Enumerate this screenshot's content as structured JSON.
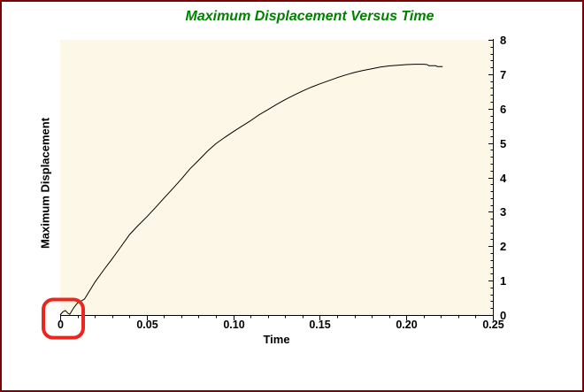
{
  "frame": {
    "border_color": "#7a0104",
    "background": "#ffffff"
  },
  "chart_data": {
    "type": "line",
    "title": "Maximum Displacement Versus Time",
    "xlabel": "Time",
    "ylabel": "Maximum Displacement",
    "xlim": [
      0,
      0.25
    ],
    "ylim": [
      0,
      8
    ],
    "grid": false,
    "legend": null,
    "axis_position": {
      "x_axis": "bottom",
      "y_axis": "right"
    },
    "x_ticks": {
      "values": [
        0,
        0.05,
        0.1,
        0.15,
        0.2,
        0.25
      ],
      "labels": [
        "0",
        "0.05",
        "0.10",
        "0.15",
        "0.20",
        "0.25"
      ],
      "minor_step": 0.01
    },
    "y_ticks": {
      "values": [
        0,
        1,
        2,
        3,
        4,
        5,
        6,
        7,
        8
      ],
      "labels": [
        "0",
        "1",
        "2",
        "3",
        "4",
        "5",
        "6",
        "7",
        "8"
      ],
      "minor_step": 0.2
    },
    "colors": {
      "title": "#008000",
      "plot_background": "#fdf7e8",
      "line": "#000000",
      "axis": "#000000",
      "tick_label": "#000000",
      "annotation": "#e8281e"
    },
    "series": [
      {
        "name": "maximum-displacement",
        "points": [
          [
            0,
            0
          ],
          [
            0.0015,
            0.09
          ],
          [
            0.003,
            0.13
          ],
          [
            0.0045,
            0.05
          ],
          [
            0.0055,
            0.02
          ],
          [
            0.008,
            0.22
          ],
          [
            0.01,
            0.35
          ],
          [
            0.014,
            0.46
          ],
          [
            0.02,
            0.95
          ],
          [
            0.025,
            1.3
          ],
          [
            0.03,
            1.63
          ],
          [
            0.035,
            1.98
          ],
          [
            0.04,
            2.33
          ],
          [
            0.045,
            2.6
          ],
          [
            0.05,
            2.85
          ],
          [
            0.055,
            3.12
          ],
          [
            0.06,
            3.4
          ],
          [
            0.065,
            3.67
          ],
          [
            0.07,
            3.95
          ],
          [
            0.075,
            4.25
          ],
          [
            0.08,
            4.5
          ],
          [
            0.085,
            4.76
          ],
          [
            0.09,
            4.98
          ],
          [
            0.095,
            5.16
          ],
          [
            0.1,
            5.33
          ],
          [
            0.105,
            5.49
          ],
          [
            0.11,
            5.65
          ],
          [
            0.115,
            5.82
          ],
          [
            0.12,
            5.97
          ],
          [
            0.125,
            6.12
          ],
          [
            0.13,
            6.26
          ],
          [
            0.135,
            6.39
          ],
          [
            0.14,
            6.51
          ],
          [
            0.145,
            6.62
          ],
          [
            0.15,
            6.72
          ],
          [
            0.155,
            6.81
          ],
          [
            0.16,
            6.9
          ],
          [
            0.165,
            6.98
          ],
          [
            0.17,
            7.05
          ],
          [
            0.175,
            7.11
          ],
          [
            0.18,
            7.16
          ],
          [
            0.185,
            7.21
          ],
          [
            0.19,
            7.24
          ],
          [
            0.195,
            7.26
          ],
          [
            0.2,
            7.28
          ],
          [
            0.205,
            7.29
          ],
          [
            0.21,
            7.29
          ],
          [
            0.212,
            7.28
          ],
          [
            0.213,
            7.25
          ],
          [
            0.217,
            7.25
          ],
          [
            0.218,
            7.22
          ],
          [
            0.221,
            7.22
          ]
        ]
      }
    ],
    "annotation": {
      "shape": "rounded-rect-highlight",
      "description": "red highlight box around curve start at origin",
      "x_range": [
        -0.0097,
        0.0133
      ],
      "y_range": [
        -0.66,
        0.45
      ]
    }
  }
}
